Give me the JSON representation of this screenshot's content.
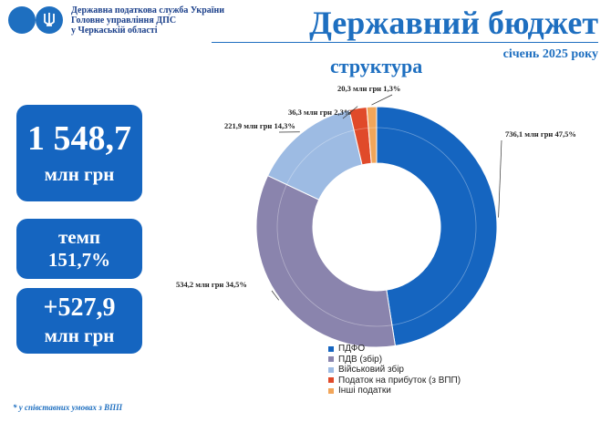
{
  "header": {
    "org_lines": [
      "Державна податкова служба України",
      "Головне управління ДПС",
      "у Черкаській області"
    ],
    "title": "Державний бюджет",
    "period": "січень 2025 року",
    "subtitle": "структура"
  },
  "colors": {
    "brand": "#1565c0",
    "accent": "#1e6fc0"
  },
  "kpi": {
    "total_value": "1 548,7",
    "total_unit": "млн грн",
    "growth_label": "темп",
    "growth_value": "151,7%",
    "delta_value": "+527,9",
    "delta_unit": "млн грн"
  },
  "footnote": "* у співставних умовах з ВПП",
  "chart_data": {
    "type": "pie",
    "style": "donut",
    "series": [
      {
        "name": "ПДФО",
        "value": 736.1,
        "percent": 47.5,
        "label": "736,1 млн грн 47,5%",
        "color": "#1565c0"
      },
      {
        "name": "ПДВ (збір)",
        "value": 534.2,
        "percent": 34.5,
        "label": "534,2 млн грн 34,5%",
        "color": "#8a84ad"
      },
      {
        "name": "Військовий збір",
        "value": 221.9,
        "percent": 14.3,
        "label": "221,9 млн грн 14,3%",
        "color": "#9dbbe3"
      },
      {
        "name": "Податок на прибуток (з ВПП)",
        "value": 36.3,
        "percent": 2.3,
        "label": "36,3 млн грн 2,3%",
        "color": "#e04a2a"
      },
      {
        "name": "Інші податки",
        "value": 20.3,
        "percent": 1.3,
        "label": "20,3 млн грн 1,3%",
        "color": "#f2a65a"
      }
    ],
    "legend_position": "bottom-right"
  }
}
